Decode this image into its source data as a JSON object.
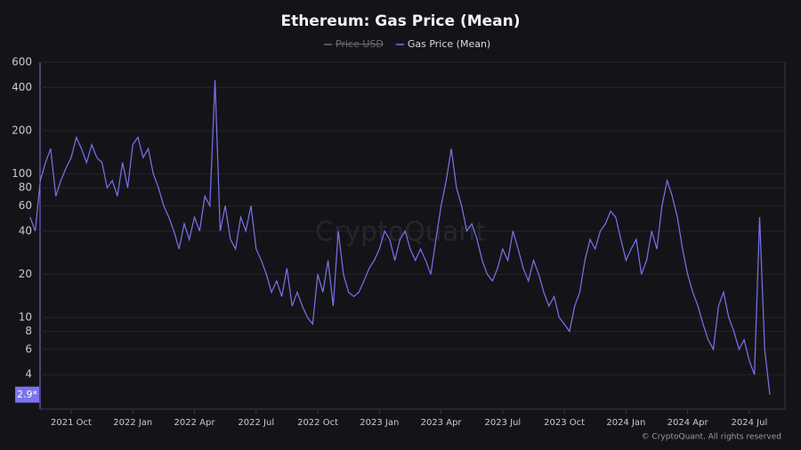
{
  "chart_data": {
    "type": "line",
    "title": "Ethereum: Gas Price (Mean)",
    "log_scale": true,
    "grid": true,
    "legend": "top",
    "watermark": "CryptoQuant",
    "footer": "© CryptoQuant. All rights reserved",
    "xlim": [
      "2021-08",
      "2024-08"
    ],
    "xticks": [
      {
        "value": "2021-10",
        "label": "2021 Oct"
      },
      {
        "value": "2022-01",
        "label": "2022 Jan"
      },
      {
        "value": "2022-04",
        "label": "2022 Apr"
      },
      {
        "value": "2022-07",
        "label": "2022 Jul"
      },
      {
        "value": "2022-10",
        "label": "2022 Oct"
      },
      {
        "value": "2023-01",
        "label": "2023 Jan"
      },
      {
        "value": "2023-04",
        "label": "2023 Apr"
      },
      {
        "value": "2023-07",
        "label": "2023 Jul"
      },
      {
        "value": "2023-10",
        "label": "2023 Oct"
      },
      {
        "value": "2024-01",
        "label": "2024 Jan"
      },
      {
        "value": "2024-04",
        "label": "2024 Apr"
      },
      {
        "value": "2024-07",
        "label": "2024 Jul"
      }
    ],
    "ylim": [
      2.3,
      600
    ],
    "yticks": [
      4,
      6,
      8,
      10,
      20,
      40,
      60,
      80,
      100,
      200,
      400,
      600
    ],
    "series": [
      {
        "name": "Price USD",
        "color": "#6b6b75",
        "visible": false
      },
      {
        "name": "Gas Price (Mean)",
        "color": "#7b73ee",
        "visible": true,
        "current_label": "2.9*",
        "values": [
          50,
          40,
          90,
          120,
          150,
          70,
          90,
          110,
          130,
          180,
          150,
          120,
          160,
          130,
          120,
          80,
          90,
          70,
          120,
          80,
          160,
          180,
          130,
          150,
          100,
          80,
          60,
          50,
          40,
          30,
          45,
          35,
          50,
          40,
          70,
          60,
          450,
          40,
          60,
          35,
          30,
          50,
          40,
          60,
          30,
          25,
          20,
          15,
          18,
          14,
          22,
          12,
          15,
          12,
          10,
          9,
          20,
          15,
          25,
          12,
          40,
          20,
          15,
          14,
          15,
          18,
          22,
          25,
          30,
          40,
          35,
          25,
          35,
          40,
          30,
          25,
          30,
          25,
          20,
          35,
          60,
          90,
          150,
          80,
          60,
          40,
          45,
          35,
          25,
          20,
          18,
          22,
          30,
          25,
          40,
          30,
          22,
          18,
          25,
          20,
          15,
          12,
          14,
          10,
          9,
          8,
          12,
          15,
          25,
          35,
          30,
          40,
          45,
          55,
          50,
          35,
          25,
          30,
          35,
          20,
          25,
          40,
          30,
          60,
          90,
          70,
          50,
          30,
          20,
          15,
          12,
          9,
          7,
          6,
          12,
          15,
          10,
          8,
          6,
          7,
          5,
          4,
          50,
          6,
          2.9
        ]
      }
    ]
  }
}
